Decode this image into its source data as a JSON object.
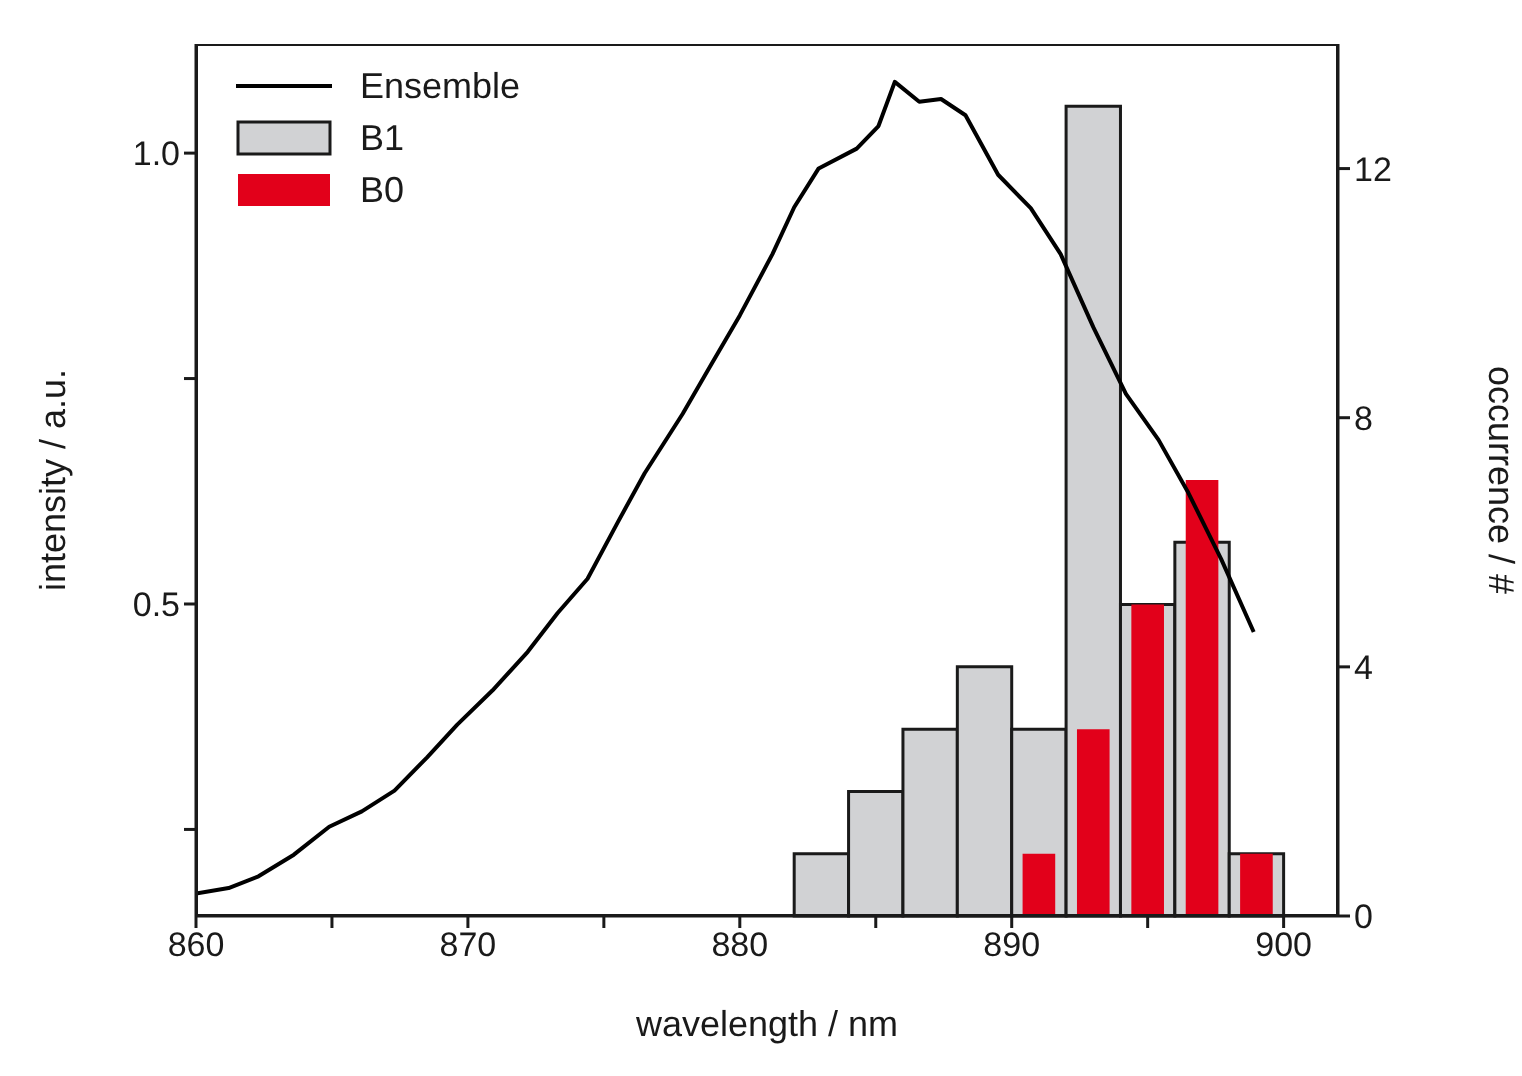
{
  "chart_data": {
    "type": "line",
    "xlabel": "wavelength / nm",
    "ylabel": "intensity / a.u.",
    "y2label": "occurrence / #",
    "xlim": [
      860,
      902
    ],
    "xticks": [
      860,
      {
        "value": 865,
        "label": null
      },
      870,
      {
        "value": 875,
        "label": null
      },
      880,
      {
        "value": 885,
        "label": null
      },
      890,
      {
        "value": 895,
        "label": null
      },
      900
    ],
    "ylim": [
      0.154,
      1.121
    ],
    "yticks": [
      {
        "value": 0.25,
        "label": null
      },
      {
        "value": 0.5,
        "label": "0.5"
      },
      {
        "value": 0.75,
        "label": null
      },
      {
        "value": 1.0,
        "label": "1.0"
      }
    ],
    "y2lim": [
      0,
      14
    ],
    "y2ticks": [
      0,
      4,
      8,
      12
    ],
    "legend": "top left",
    "series": [
      {
        "name": "Ensemble",
        "type": "line",
        "color": "#000000",
        "x": [
          860,
          861.2,
          862.3,
          863.6,
          864.9,
          866.1,
          867.3,
          868.5,
          869.6,
          870.9,
          872.2,
          873.3,
          874.4,
          875.5,
          876.5,
          877.9,
          878.9,
          880,
          881.2,
          882,
          882.9,
          884.3,
          885.1,
          885.7,
          886.6,
          887.4,
          888.3,
          889.5,
          890.7,
          891.8,
          893,
          894.2,
          895.4,
          896.5,
          897.7,
          898.9
        ],
        "values": [
          0.179,
          0.185,
          0.198,
          0.222,
          0.253,
          0.27,
          0.293,
          0.33,
          0.366,
          0.404,
          0.447,
          0.49,
          0.528,
          0.59,
          0.645,
          0.711,
          0.763,
          0.82,
          0.888,
          0.94,
          0.983,
          1.005,
          1.03,
          1.079,
          1.057,
          1.06,
          1.042,
          0.976,
          0.939,
          0.888,
          0.807,
          0.733,
          0.682,
          0.623,
          0.55,
          0.469
        ]
      },
      {
        "name": "B1",
        "type": "histogram",
        "axis": "y2",
        "color": "#d1d2d4",
        "bins": [
          882,
          884,
          886,
          888,
          890,
          892,
          894,
          896,
          898,
          900
        ],
        "values": [
          1,
          2,
          3,
          4,
          3,
          13,
          5,
          6,
          1
        ]
      },
      {
        "name": "B0",
        "type": "histogram",
        "axis": "y2",
        "color": "#e2001a",
        "bins": [
          890,
          892,
          894,
          896,
          898,
          900
        ],
        "values": [
          1,
          3,
          5,
          7,
          1
        ]
      }
    ]
  }
}
